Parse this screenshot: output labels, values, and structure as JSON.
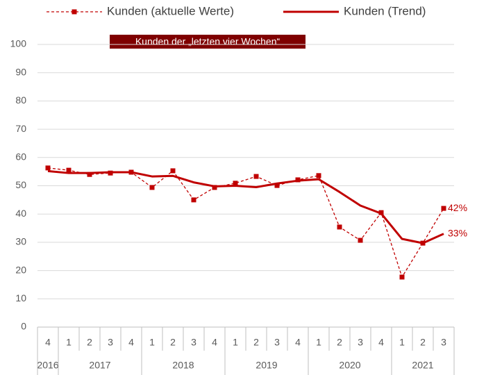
{
  "chart_data": {
    "type": "line",
    "title": "Kunden der „letzten vier Wochen“",
    "categories": [
      "4",
      "1",
      "2",
      "3",
      "4",
      "1",
      "2",
      "3",
      "4",
      "1",
      "2",
      "3",
      "4",
      "1",
      "2",
      "3",
      "4",
      "1",
      "2",
      "3"
    ],
    "category_groups": [
      {
        "label": "2016",
        "count": 1
      },
      {
        "label": "2017",
        "count": 4
      },
      {
        "label": "2018",
        "count": 4
      },
      {
        "label": "2019",
        "count": 4
      },
      {
        "label": "2020",
        "count": 4
      },
      {
        "label": "2021",
        "count": 3
      }
    ],
    "series": [
      {
        "name": "Kunden (aktuelle Werte)",
        "color": "#c00000",
        "style": "dashed-markers",
        "values": [
          56.3,
          55.5,
          54,
          54.5,
          54.8,
          49.4,
          55.3,
          45,
          49.4,
          50.9,
          53.3,
          50.1,
          52.1,
          53.6,
          35.4,
          30.7,
          40.5,
          17.7,
          29.7,
          42
        ],
        "last_label": "42%"
      },
      {
        "name": "Kunden (Trend)",
        "color": "#c00000",
        "style": "solid",
        "values": [
          55.2,
          54.5,
          54.5,
          54.8,
          54.8,
          53.3,
          53.5,
          51.2,
          49.8,
          50,
          49.5,
          50.8,
          51.8,
          52.3,
          47.8,
          43,
          40.2,
          31.2,
          29.7,
          33
        ],
        "last_label": "33%"
      }
    ],
    "ylim": [
      0,
      100
    ],
    "yticks": [
      0,
      10,
      20,
      30,
      40,
      50,
      60,
      70,
      80,
      90,
      100
    ],
    "grid": true,
    "title_background": "#7f0000"
  }
}
